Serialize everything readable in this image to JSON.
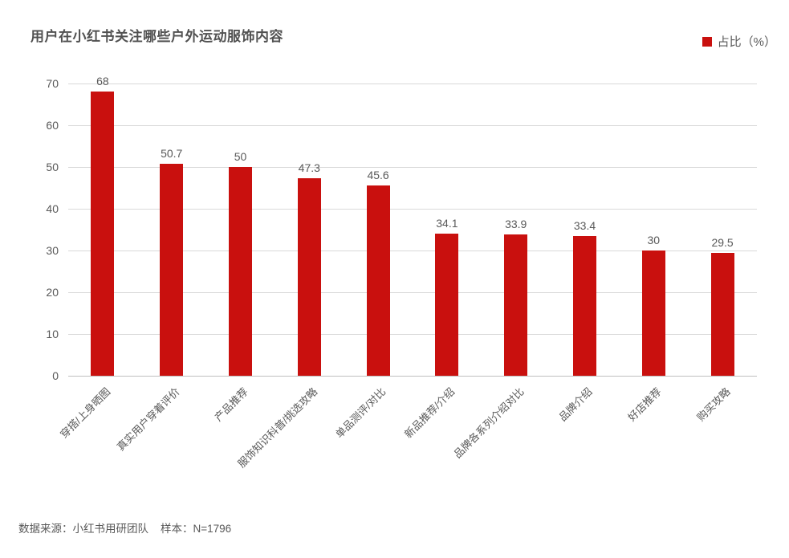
{
  "header": {
    "title": "用户在小红书关注哪些户外运动服饰内容"
  },
  "legend": {
    "label": "占比（%）"
  },
  "footer": {
    "source": "数据来源：小红书用研团队",
    "sample": "样本：N=1796"
  },
  "colors": {
    "bar": "#C9100E",
    "gridline": "#D9D9D9",
    "axis_line": "#BFBFBF",
    "text": "#595959",
    "background": "#FFFFFF"
  },
  "chart_data": {
    "type": "bar",
    "title": "用户在小红书关注哪些户外运动服饰内容",
    "series_name": "占比（%）",
    "categories": [
      "穿搭/上身晒图",
      "真实用户穿着评价",
      "产品推荐",
      "服饰知识科普/挑选攻略",
      "单品测评/对比",
      "新品推荐/介绍",
      "品牌各系列介绍对比",
      "品牌介绍",
      "好店推荐",
      "购买攻略"
    ],
    "values": [
      68,
      50.7,
      50,
      47.3,
      45.6,
      34.1,
      33.9,
      33.4,
      30,
      29.5
    ],
    "xlabel": "",
    "ylabel": "",
    "ylim": [
      0,
      70
    ],
    "yticks": [
      0,
      10,
      20,
      30,
      40,
      50,
      60,
      70
    ],
    "grid": true,
    "legend_position": "top-right",
    "data_labels": true,
    "x_label_rotation_deg": 45
  }
}
